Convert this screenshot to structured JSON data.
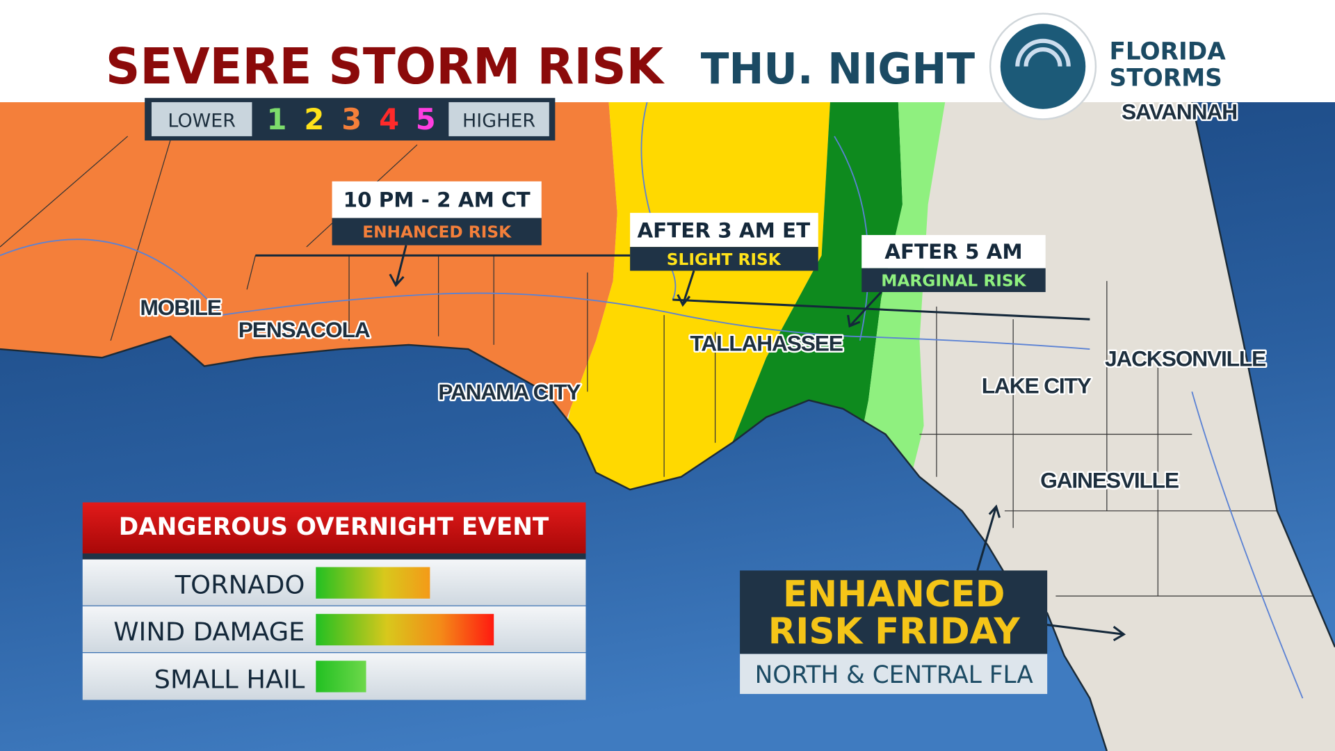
{
  "header": {
    "title": "SEVERE STORM RISK",
    "subtitle": "THU. NIGHT",
    "brand": [
      "FLORIDA",
      "STORMS"
    ]
  },
  "legend": {
    "low": "LOWER",
    "levels": [
      "1",
      "2",
      "3",
      "4",
      "5"
    ],
    "high": "HIGHER"
  },
  "callouts": [
    {
      "time": "10 PM - 2 AM CT",
      "risk": "ENHANCED RISK"
    },
    {
      "time": "AFTER 3 AM ET",
      "risk": "SLIGHT RISK"
    },
    {
      "time": "AFTER 5 AM",
      "risk": "MARGINAL RISK"
    }
  ],
  "cities": [
    "SAVANNAH",
    "MOBILE",
    "PENSACOLA",
    "PANAMA CITY",
    "TALLAHASSEE",
    "LAKE CITY",
    "JACKSONVILLE",
    "GAINESVILLE"
  ],
  "panel": {
    "title": "DANGEROUS OVERNIGHT EVENT",
    "hazards": [
      "TORNADO",
      "WIND DAMAGE",
      "SMALL HAIL"
    ]
  },
  "friday": {
    "lines": [
      "ENHANCED",
      "RISK FRIDAY"
    ],
    "area": "NORTH & CENTRAL FLA"
  }
}
